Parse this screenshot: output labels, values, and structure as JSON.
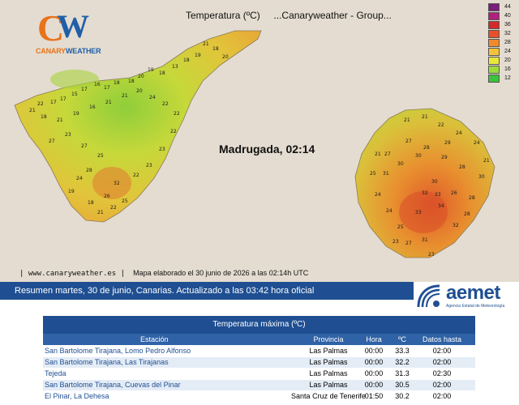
{
  "map": {
    "title": "Temperatura (ºC)     ...Canaryweather - Group...",
    "subtitle": "Madrugada, 02:14",
    "footer_url": "| www.canaryweather.es |",
    "footer_note": "Mapa elaborado el 30 junio de 2026 a las 02:14h UTC",
    "logo_text_1": "CANARY",
    "logo_text_2": "WEATHER",
    "logo_letters": "CW",
    "legend": {
      "labels": [
        "44",
        "40",
        "36",
        "32",
        "28",
        "24",
        "20",
        "16",
        "12"
      ],
      "colors": [
        "#7a1f7a",
        "#b0207e",
        "#d42a2a",
        "#e8502a",
        "#f08a2a",
        "#f6c23a",
        "#e8e83a",
        "#9fd93c",
        "#3cc23c"
      ]
    },
    "tenerife_values": [
      "21",
      "18",
      "19",
      "18",
      "20",
      "13",
      "18",
      "19",
      "20",
      "18",
      "18",
      "17",
      "16",
      "17",
      "15",
      "17",
      "17",
      "22",
      "21",
      "18",
      "21",
      "19",
      "16",
      "21",
      "21",
      "20",
      "24",
      "22",
      "22",
      "27",
      "23",
      "27",
      "25",
      "28",
      "32",
      "26",
      "25",
      "22",
      "23",
      "23",
      "22",
      "24",
      "19",
      "18",
      "21",
      "22"
    ],
    "grancanaria_values": [
      "21",
      "21",
      "22",
      "24",
      "24",
      "27",
      "28",
      "29",
      "28",
      "30",
      "27",
      "30",
      "30",
      "31",
      "33",
      "34",
      "26",
      "30",
      "28",
      "32",
      "33",
      "24",
      "24",
      "25",
      "27",
      "31",
      "23",
      "32",
      "28",
      "21",
      "29",
      "21",
      "25",
      "23"
    ]
  },
  "banner": {
    "text": "Resumen martes, 30 de junio, Canarias. Actualizado a las 03:42 hora oficial"
  },
  "aemet": {
    "word": "aemet",
    "sub": "Agencia Estatal de Meteorología"
  },
  "table": {
    "title": "Temperatura máxima (ºC)",
    "headers": {
      "estacion": "Estación",
      "provincia": "Provincia",
      "hora": "Hora",
      "valor": "ºC",
      "datos": "Datos hasta"
    },
    "rows": [
      {
        "estacion": "San Bartolome Tirajana, Lomo Pedro Alfonso",
        "provincia": "Las Palmas",
        "hora": "00:00",
        "valor": "33.3",
        "datos": "02:00"
      },
      {
        "estacion": "San Bartolome Tirajana, Las Tirajanas",
        "provincia": "Las Palmas",
        "hora": "00:00",
        "valor": "32.2",
        "datos": "02:00"
      },
      {
        "estacion": "Tejeda",
        "provincia": "Las Palmas",
        "hora": "00:00",
        "valor": "31.3",
        "datos": "02:30"
      },
      {
        "estacion": "San Bartolome Tirajana, Cuevas del Pinar",
        "provincia": "Las Palmas",
        "hora": "00:00",
        "valor": "30.5",
        "datos": "02:00"
      },
      {
        "estacion": "El Pinar, La Dehesa",
        "provincia": "Santa Cruz de Tenerife",
        "hora": "01:50",
        "valor": "30.2",
        "datos": "02:00"
      }
    ]
  }
}
